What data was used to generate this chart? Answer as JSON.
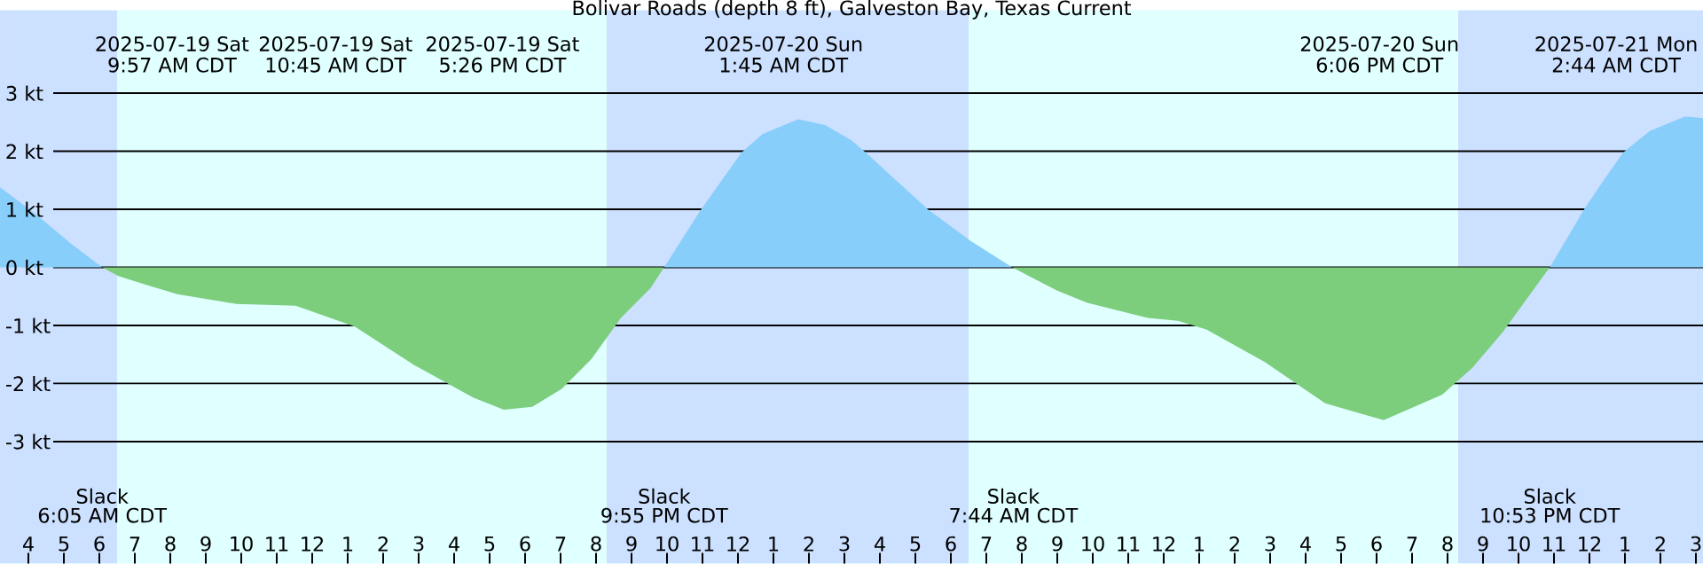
{
  "chart_data": {
    "type": "area",
    "title": "Bolivar Roads (depth 8 ft), Galveston Bay, Texas Current",
    "xlim": [
      "2025-07-19T03:12",
      "2025-07-21T03:12"
    ],
    "ylim": [
      -5.1,
      4.43
    ],
    "xticks": [
      {
        "value": "2025-07-19T04:00",
        "label": "4"
      },
      {
        "value": "2025-07-19T05:00",
        "label": "5"
      },
      {
        "value": "2025-07-19T06:00",
        "label": "6"
      },
      {
        "value": "2025-07-19T07:00",
        "label": "7"
      },
      {
        "value": "2025-07-19T08:00",
        "label": "8"
      },
      {
        "value": "2025-07-19T09:00",
        "label": "9"
      },
      {
        "value": "2025-07-19T10:00",
        "label": "10"
      },
      {
        "value": "2025-07-19T11:00",
        "label": "11"
      },
      {
        "value": "2025-07-19T12:00",
        "label": "12"
      },
      {
        "value": "2025-07-19T13:00",
        "label": "1"
      },
      {
        "value": "2025-07-19T14:00",
        "label": "2"
      },
      {
        "value": "2025-07-19T15:00",
        "label": "3"
      },
      {
        "value": "2025-07-19T16:00",
        "label": "4"
      },
      {
        "value": "2025-07-19T17:00",
        "label": "5"
      },
      {
        "value": "2025-07-19T18:00",
        "label": "6"
      },
      {
        "value": "2025-07-19T19:00",
        "label": "7"
      },
      {
        "value": "2025-07-19T20:00",
        "label": "8"
      },
      {
        "value": "2025-07-19T21:00",
        "label": "9"
      },
      {
        "value": "2025-07-19T22:00",
        "label": "10"
      },
      {
        "value": "2025-07-19T23:00",
        "label": "11"
      },
      {
        "value": "2025-07-20T00:00",
        "label": "12"
      },
      {
        "value": "2025-07-20T01:00",
        "label": "1"
      },
      {
        "value": "2025-07-20T02:00",
        "label": "2"
      },
      {
        "value": "2025-07-20T03:00",
        "label": "3"
      },
      {
        "value": "2025-07-20T04:00",
        "label": "4"
      },
      {
        "value": "2025-07-20T05:00",
        "label": "5"
      },
      {
        "value": "2025-07-20T06:00",
        "label": "6"
      },
      {
        "value": "2025-07-20T07:00",
        "label": "7"
      },
      {
        "value": "2025-07-20T08:00",
        "label": "8"
      },
      {
        "value": "2025-07-20T09:00",
        "label": "9"
      },
      {
        "value": "2025-07-20T10:00",
        "label": "10"
      },
      {
        "value": "2025-07-20T11:00",
        "label": "11"
      },
      {
        "value": "2025-07-20T12:00",
        "label": "12"
      },
      {
        "value": "2025-07-20T13:00",
        "label": "1"
      },
      {
        "value": "2025-07-20T14:00",
        "label": "2"
      },
      {
        "value": "2025-07-20T15:00",
        "label": "3"
      },
      {
        "value": "2025-07-20T16:00",
        "label": "4"
      },
      {
        "value": "2025-07-20T17:00",
        "label": "5"
      },
      {
        "value": "2025-07-20T18:00",
        "label": "6"
      },
      {
        "value": "2025-07-20T19:00",
        "label": "7"
      },
      {
        "value": "2025-07-20T20:00",
        "label": "8"
      },
      {
        "value": "2025-07-20T21:00",
        "label": "9"
      },
      {
        "value": "2025-07-20T22:00",
        "label": "10"
      },
      {
        "value": "2025-07-20T23:00",
        "label": "11"
      },
      {
        "value": "2025-07-21T00:00",
        "label": "12"
      },
      {
        "value": "2025-07-21T01:00",
        "label": "1"
      },
      {
        "value": "2025-07-21T02:00",
        "label": "2"
      },
      {
        "value": "2025-07-21T03:00",
        "label": "3"
      }
    ],
    "yticks": [
      {
        "value": 3,
        "label": "3 kt"
      },
      {
        "value": 2,
        "label": "2 kt"
      },
      {
        "value": 1,
        "label": "1 kt"
      },
      {
        "value": 0,
        "label": "0 kt"
      },
      {
        "value": -1,
        "label": "-1 kt"
      },
      {
        "value": -2,
        "label": "-2 kt"
      },
      {
        "value": -3,
        "label": "-3 kt"
      }
    ],
    "grid": "y",
    "bands": [
      {
        "axis": "x",
        "from": "2025-07-19T03:12",
        "to": "2025-07-19T06:30",
        "color": "#cce0ff"
      },
      {
        "axis": "x",
        "from": "2025-07-19T20:18",
        "to": "2025-07-20T06:30",
        "color": "#cce0ff"
      },
      {
        "axis": "x",
        "from": "2025-07-20T20:18",
        "to": "2025-07-21T03:12",
        "color": "#cce0ff"
      }
    ],
    "series": [
      {
        "color": "#87cefa",
        "x": [
          "2025-07-19T03:12",
          "2025-07-19T04:12",
          "2025-07-19T05:12",
          "2025-07-19T06:05",
          "2025-07-19T13:00",
          "2025-07-19T21:55",
          "2025-07-19T22:57",
          "2025-07-20T00:06",
          "2025-07-20T00:42",
          "2025-07-20T01:42",
          "2025-07-20T02:27",
          "2025-07-20T03:12",
          "2025-07-20T03:36",
          "2025-07-20T05:21",
          "2025-07-20T06:33",
          "2025-07-20T07:44",
          "2025-07-20T15:00",
          "2025-07-20T22:53",
          "2025-07-20T23:51",
          "2025-07-21T00:24",
          "2025-07-21T00:57",
          "2025-07-21T01:42",
          "2025-07-21T02:42",
          "2025-07-21T03:12"
        ],
        "values": [
          1.38,
          0.92,
          0.41,
          0,
          null,
          0,
          0.99,
          1.98,
          2.3,
          2.55,
          2.45,
          2.19,
          1.98,
          1.0,
          0.46,
          0,
          null,
          0,
          1.0,
          1.5,
          1.98,
          2.35,
          2.6,
          2.57
        ]
      },
      {
        "color": "#7ccd7c",
        "x": [
          "2025-07-19T06:05",
          "2025-07-19T06:32",
          "2025-07-19T07:22",
          "2025-07-19T08:12",
          "2025-07-19T09:52",
          "2025-07-19T11:32",
          "2025-07-19T13:12",
          "2025-07-19T14:52",
          "2025-07-19T16:32",
          "2025-07-19T17:24",
          "2025-07-19T18:12",
          "2025-07-19T19:02",
          "2025-07-19T19:52",
          "2025-07-19T20:42",
          "2025-07-19T21:32",
          "2025-07-19T21:55",
          "2025-07-20T03:00",
          "2025-07-20T07:44",
          "2025-07-20T08:12",
          "2025-07-20T09:00",
          "2025-07-20T09:51",
          "2025-07-20T11:33",
          "2025-07-20T12:24",
          "2025-07-20T13:12",
          "2025-07-20T14:51",
          "2025-07-20T16:33",
          "2025-07-20T18:12",
          "2025-07-20T19:51",
          "2025-07-20T20:42",
          "2025-07-20T21:33",
          "2025-07-20T22:42",
          "2025-07-20T22:53"
        ],
        "values": [
          0,
          -0.15,
          -0.31,
          -0.46,
          -0.63,
          -0.66,
          -1.02,
          -1.68,
          -2.24,
          -2.45,
          -2.4,
          -2.09,
          -1.58,
          -0.87,
          -0.36,
          0,
          null,
          0,
          -0.15,
          -0.4,
          -0.61,
          -0.87,
          -0.92,
          -1.07,
          -1.63,
          -2.34,
          -2.63,
          -2.19,
          -1.73,
          -1.12,
          -0.15,
          0
        ]
      }
    ],
    "annotations": [
      "2025-07-19 Sat",
      "9:57 AM CDT",
      "2025-07-19 Sat",
      "10:45 AM CDT",
      "2025-07-19 Sat",
      "5:26 PM CDT",
      "2025-07-20 Sun",
      "1:45 AM CDT",
      "2025-07-20 Sun",
      "6:06 PM CDT",
      "2025-07-21 Mon",
      "2:44 AM CDT",
      "Slack",
      "6:05 AM CDT",
      "Slack",
      "9:55 PM CDT",
      "Slack",
      "7:44 AM CDT",
      "Slack",
      "10:53 PM CDT"
    ]
  }
}
